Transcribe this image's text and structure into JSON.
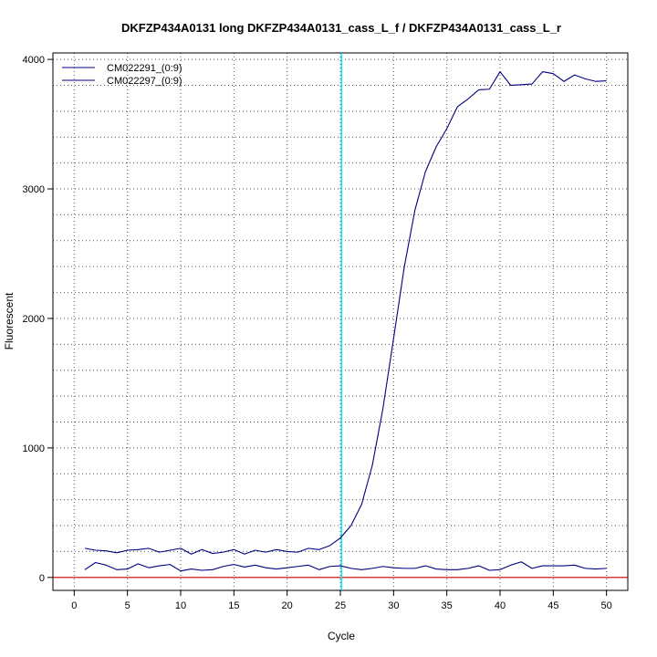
{
  "chart_data": {
    "type": "line",
    "title": "DKFZP434A0131 long DKFZP434A0131_cass_L_f / DKFZP434A0131_cass_L_r",
    "xlabel": "Cycle",
    "ylabel": "Fluorescent",
    "xlim": [
      -2,
      52
    ],
    "ylim": [
      -100,
      4050
    ],
    "x_ticks": [
      0,
      5,
      10,
      15,
      20,
      25,
      30,
      35,
      40,
      45,
      50
    ],
    "y_ticks": [
      0,
      1000,
      2000,
      3000,
      4000
    ],
    "x_gridlines": [
      0,
      5,
      10,
      15,
      20,
      25,
      30,
      35,
      40,
      45,
      50
    ],
    "y_gridlines": [
      0,
      200,
      400,
      600,
      800,
      1000,
      1200,
      1400,
      1600,
      1800,
      2000,
      2200,
      2400,
      2600,
      2800,
      3000,
      3200,
      3400,
      3600,
      3800,
      4000
    ],
    "grid": true,
    "legend_position": "top-left",
    "threshold_line": {
      "x": 25.1,
      "color": "#00e5ee"
    },
    "baseline": {
      "y": 0,
      "color": "#cc0000"
    },
    "x": [
      1,
      2,
      3,
      4,
      5,
      6,
      7,
      8,
      9,
      10,
      11,
      12,
      13,
      14,
      15,
      16,
      17,
      18,
      19,
      20,
      21,
      22,
      23,
      24,
      25,
      26,
      27,
      28,
      29,
      30,
      31,
      32,
      33,
      34,
      35,
      36,
      37,
      38,
      39,
      40,
      41,
      42,
      43,
      44,
      45,
      46,
      47,
      48,
      49,
      50
    ],
    "series": [
      {
        "name": "CM022291_(0:9)",
        "color": "#00007f",
        "values": [
          225,
          210,
          205,
          190,
          210,
          215,
          225,
          195,
          210,
          225,
          180,
          215,
          185,
          195,
          215,
          180,
          210,
          195,
          215,
          200,
          195,
          225,
          215,
          245,
          305,
          400,
          565,
          865,
          1305,
          1845,
          2395,
          2835,
          3135,
          3325,
          3465,
          3635,
          3695,
          3765,
          3770,
          3905,
          3800,
          3805,
          3810,
          3905,
          3890,
          3830,
          3880,
          3850,
          3830,
          3835
        ]
      },
      {
        "name": "CM022297_(0:9)",
        "color": "#00007f",
        "values": [
          60,
          115,
          95,
          60,
          65,
          105,
          75,
          90,
          100,
          50,
          65,
          55,
          60,
          85,
          100,
          80,
          95,
          75,
          65,
          75,
          85,
          95,
          60,
          85,
          90,
          70,
          60,
          70,
          85,
          75,
          70,
          70,
          90,
          65,
          60,
          60,
          70,
          90,
          55,
          60,
          95,
          120,
          70,
          90,
          90,
          90,
          95,
          70,
          65,
          70
        ]
      }
    ]
  }
}
